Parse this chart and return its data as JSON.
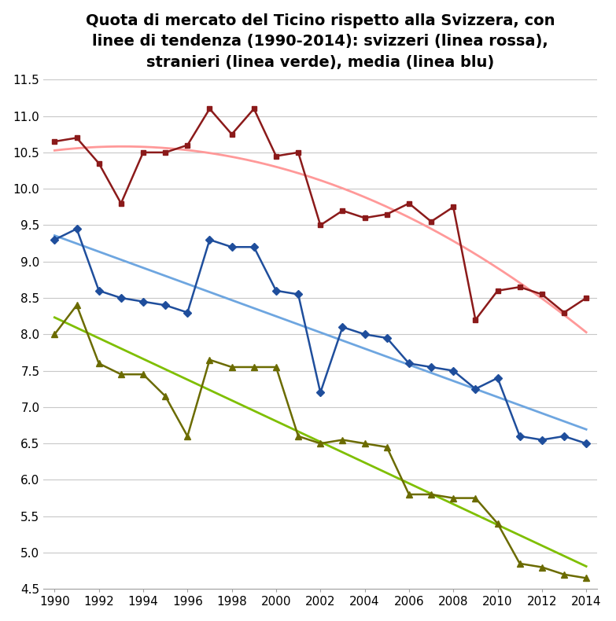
{
  "title": "Quota di mercato del Ticino rispetto alla Svizzera, con\nlinee di tendenza (1990-2014): svizzeri (linea rossa),\nstranieri (linea verde), media (linea blu)",
  "years": [
    1990,
    1991,
    1992,
    1993,
    1994,
    1995,
    1996,
    1997,
    1998,
    1999,
    2000,
    2001,
    2002,
    2003,
    2004,
    2005,
    2006,
    2007,
    2008,
    2009,
    2010,
    2011,
    2012,
    2013,
    2014
  ],
  "svizzeri": [
    10.65,
    10.7,
    10.35,
    9.8,
    10.5,
    10.5,
    10.6,
    11.1,
    10.75,
    11.1,
    10.45,
    10.5,
    9.5,
    9.7,
    9.6,
    9.65,
    9.8,
    9.55,
    9.75,
    8.2,
    8.6,
    8.65,
    8.55,
    8.3,
    8.5
  ],
  "stranieri": [
    8.0,
    8.4,
    7.6,
    7.45,
    7.45,
    7.15,
    6.6,
    7.65,
    7.55,
    7.55,
    7.55,
    6.6,
    6.5,
    6.55,
    6.5,
    6.45,
    5.8,
    5.8,
    5.75,
    5.75,
    5.4,
    4.85,
    4.8,
    4.7,
    4.65
  ],
  "media": [
    9.3,
    9.45,
    8.6,
    8.5,
    8.45,
    8.4,
    8.3,
    9.3,
    9.2,
    9.2,
    8.6,
    8.55,
    7.2,
    8.1,
    8.0,
    7.95,
    7.6,
    7.55,
    7.5,
    7.25,
    7.4,
    6.6,
    6.55,
    6.6,
    6.5
  ],
  "svizzeri_color": "#8B1A1A",
  "stranieri_color": "#6B6B00",
  "media_color": "#1F4E9C",
  "trend_svizzeri_color": "#FF9999",
  "trend_stranieri_color": "#7FBF00",
  "trend_media_color": "#6EA6E0",
  "ylim": [
    4.5,
    11.5
  ],
  "xlim": [
    1989.5,
    2014.5
  ],
  "yticks": [
    4.5,
    5.0,
    5.5,
    6.0,
    6.5,
    7.0,
    7.5,
    8.0,
    8.5,
    9.0,
    9.5,
    10.0,
    10.5,
    11.0,
    11.5
  ],
  "xticks": [
    1990,
    1992,
    1994,
    1996,
    1998,
    2000,
    2002,
    2004,
    2006,
    2008,
    2010,
    2012,
    2014
  ],
  "background_color": "#FFFFFF",
  "grid_color": "#C8C8C8"
}
